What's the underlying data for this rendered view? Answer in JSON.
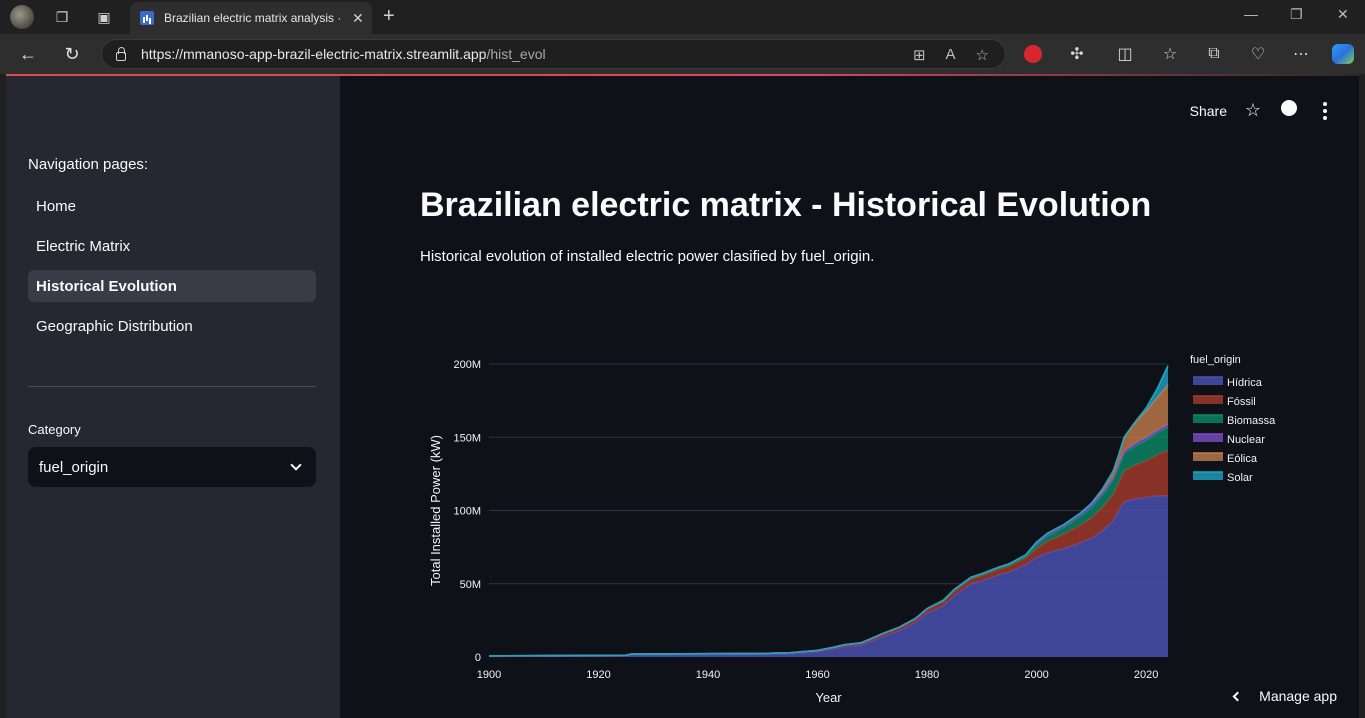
{
  "browser": {
    "tab_title": "Brazilian electric matrix analysis · Streamlit",
    "url_host": "https://mmanoso-app-brazil-electric-matrix.streamlit.app",
    "url_path": "/hist_evol"
  },
  "sidebar": {
    "nav_heading": "Navigation pages:",
    "nav_items": [
      "Home",
      "Electric Matrix",
      "Historical Evolution",
      "Geographic Distribution"
    ],
    "active_item": "Historical Evolution",
    "category_label": "Category",
    "category_value": "fuel_origin"
  },
  "toolbar": {
    "share_label": "Share"
  },
  "main": {
    "title": "Brazilian electric matrix - Historical Evolution",
    "subtitle": "Historical evolution of installed electric power clasified by fuel_origin."
  },
  "manage_app": "Manage app",
  "chart_data": {
    "type": "area",
    "stacked": true,
    "xlabel": "Year",
    "ylabel": "Total Installed Power (kW)",
    "xlim": [
      1900,
      2024
    ],
    "ylim": [
      0,
      200000000
    ],
    "x_ticks": [
      1900,
      1920,
      1940,
      1960,
      1980,
      2000,
      2020
    ],
    "y_ticks": [
      "0",
      "50M",
      "100M",
      "150M",
      "200M"
    ],
    "y_tick_values": [
      0,
      50000000,
      100000000,
      150000000,
      200000000
    ],
    "grid": true,
    "legend_title": "fuel_origin",
    "legend_position": "right",
    "x": [
      1900,
      1925,
      1926,
      1950,
      1955,
      1960,
      1963,
      1965,
      1968,
      1970,
      1972,
      1975,
      1978,
      1980,
      1983,
      1985,
      1988,
      1990,
      1993,
      1995,
      1998,
      2000,
      2002,
      2005,
      2008,
      2010,
      2012,
      2014,
      2015,
      2016,
      2018,
      2020,
      2022,
      2024
    ],
    "series": [
      {
        "name": "Hídrica",
        "color": "#4c52b8",
        "values": [
          0.5,
          0.8,
          1.5,
          1.8,
          2.2,
          3.5,
          5.5,
          7,
          8,
          11,
          14,
          18,
          24,
          30,
          35,
          42,
          50,
          52,
          56,
          58,
          63,
          68,
          71,
          74,
          78,
          81,
          86,
          93,
          100,
          106,
          108,
          109,
          110,
          110
        ]
      },
      {
        "name": "Fóssil",
        "color": "#a63a2c",
        "values": [
          0.2,
          0.3,
          0.4,
          0.5,
          0.6,
          0.8,
          1,
          1.2,
          1.4,
          1.6,
          1.8,
          2,
          2.2,
          2.5,
          2.7,
          3,
          3.2,
          3.5,
          3.8,
          4,
          4.5,
          6,
          8,
          10,
          12,
          14,
          16,
          18,
          19,
          21,
          23,
          25,
          28,
          31
        ]
      },
      {
        "name": "Biomassa",
        "color": "#0b8b68",
        "values": [
          0.1,
          0.1,
          0.1,
          0.1,
          0.1,
          0.2,
          0.2,
          0.2,
          0.3,
          0.3,
          0.3,
          0.4,
          0.4,
          0.5,
          0.5,
          0.6,
          0.6,
          0.7,
          0.8,
          1,
          1.5,
          2.5,
          3.5,
          4.5,
          6,
          7,
          8.5,
          10,
          11,
          12,
          13,
          14,
          15,
          16
        ]
      },
      {
        "name": "Nuclear",
        "color": "#7a4fc8",
        "values": [
          0,
          0,
          0,
          0,
          0,
          0,
          0,
          0,
          0,
          0,
          0,
          0,
          0,
          0,
          0.6,
          0.6,
          0.6,
          0.6,
          0.6,
          0.6,
          0.6,
          1.9,
          1.9,
          1.9,
          1.9,
          1.9,
          1.9,
          1.9,
          1.9,
          1.9,
          1.9,
          1.9,
          1.9,
          1.9
        ]
      },
      {
        "name": "Eólica",
        "color": "#c47d4a",
        "values": [
          0,
          0,
          0,
          0,
          0,
          0,
          0,
          0,
          0,
          0,
          0,
          0,
          0,
          0,
          0,
          0,
          0,
          0,
          0,
          0,
          0,
          0,
          0,
          0,
          0.3,
          0.9,
          2,
          4,
          6,
          9,
          14,
          18,
          22,
          27
        ]
      },
      {
        "name": "Solar",
        "color": "#1fa2c4",
        "values": [
          0,
          0,
          0,
          0,
          0,
          0,
          0,
          0,
          0,
          0,
          0,
          0,
          0,
          0,
          0,
          0,
          0,
          0,
          0,
          0,
          0,
          0,
          0,
          0,
          0,
          0,
          0,
          0,
          0.1,
          0.2,
          0.6,
          2,
          6,
          13
        ]
      }
    ],
    "value_unit_scale": 1000000
  }
}
